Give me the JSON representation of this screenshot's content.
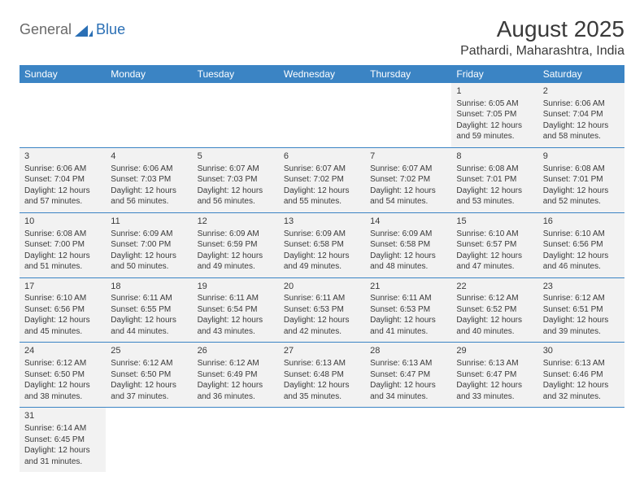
{
  "logo": {
    "part1": "General",
    "part2": "Blue"
  },
  "title": "August 2025",
  "location": "Pathardi, Maharashtra, India",
  "colors": {
    "header_bg": "#3b84c4",
    "header_text": "#ffffff",
    "cell_bg": "#f2f2f2",
    "border": "#3b84c4",
    "text": "#3a3a3a",
    "logo_gray": "#6a6a6a",
    "logo_blue": "#2a6fb5"
  },
  "weekdays": [
    "Sunday",
    "Monday",
    "Tuesday",
    "Wednesday",
    "Thursday",
    "Friday",
    "Saturday"
  ],
  "cells": [
    {
      "e": true
    },
    {
      "e": true
    },
    {
      "e": true
    },
    {
      "e": true
    },
    {
      "e": true
    },
    {
      "d": "1",
      "sr": "6:05 AM",
      "ss": "7:05 PM",
      "dl": "12 hours and 59 minutes."
    },
    {
      "d": "2",
      "sr": "6:06 AM",
      "ss": "7:04 PM",
      "dl": "12 hours and 58 minutes."
    },
    {
      "d": "3",
      "sr": "6:06 AM",
      "ss": "7:04 PM",
      "dl": "12 hours and 57 minutes."
    },
    {
      "d": "4",
      "sr": "6:06 AM",
      "ss": "7:03 PM",
      "dl": "12 hours and 56 minutes."
    },
    {
      "d": "5",
      "sr": "6:07 AM",
      "ss": "7:03 PM",
      "dl": "12 hours and 56 minutes."
    },
    {
      "d": "6",
      "sr": "6:07 AM",
      "ss": "7:02 PM",
      "dl": "12 hours and 55 minutes."
    },
    {
      "d": "7",
      "sr": "6:07 AM",
      "ss": "7:02 PM",
      "dl": "12 hours and 54 minutes."
    },
    {
      "d": "8",
      "sr": "6:08 AM",
      "ss": "7:01 PM",
      "dl": "12 hours and 53 minutes."
    },
    {
      "d": "9",
      "sr": "6:08 AM",
      "ss": "7:01 PM",
      "dl": "12 hours and 52 minutes."
    },
    {
      "d": "10",
      "sr": "6:08 AM",
      "ss": "7:00 PM",
      "dl": "12 hours and 51 minutes."
    },
    {
      "d": "11",
      "sr": "6:09 AM",
      "ss": "7:00 PM",
      "dl": "12 hours and 50 minutes."
    },
    {
      "d": "12",
      "sr": "6:09 AM",
      "ss": "6:59 PM",
      "dl": "12 hours and 49 minutes."
    },
    {
      "d": "13",
      "sr": "6:09 AM",
      "ss": "6:58 PM",
      "dl": "12 hours and 49 minutes."
    },
    {
      "d": "14",
      "sr": "6:09 AM",
      "ss": "6:58 PM",
      "dl": "12 hours and 48 minutes."
    },
    {
      "d": "15",
      "sr": "6:10 AM",
      "ss": "6:57 PM",
      "dl": "12 hours and 47 minutes."
    },
    {
      "d": "16",
      "sr": "6:10 AM",
      "ss": "6:56 PM",
      "dl": "12 hours and 46 minutes."
    },
    {
      "d": "17",
      "sr": "6:10 AM",
      "ss": "6:56 PM",
      "dl": "12 hours and 45 minutes."
    },
    {
      "d": "18",
      "sr": "6:11 AM",
      "ss": "6:55 PM",
      "dl": "12 hours and 44 minutes."
    },
    {
      "d": "19",
      "sr": "6:11 AM",
      "ss": "6:54 PM",
      "dl": "12 hours and 43 minutes."
    },
    {
      "d": "20",
      "sr": "6:11 AM",
      "ss": "6:53 PM",
      "dl": "12 hours and 42 minutes."
    },
    {
      "d": "21",
      "sr": "6:11 AM",
      "ss": "6:53 PM",
      "dl": "12 hours and 41 minutes."
    },
    {
      "d": "22",
      "sr": "6:12 AM",
      "ss": "6:52 PM",
      "dl": "12 hours and 40 minutes."
    },
    {
      "d": "23",
      "sr": "6:12 AM",
      "ss": "6:51 PM",
      "dl": "12 hours and 39 minutes."
    },
    {
      "d": "24",
      "sr": "6:12 AM",
      "ss": "6:50 PM",
      "dl": "12 hours and 38 minutes."
    },
    {
      "d": "25",
      "sr": "6:12 AM",
      "ss": "6:50 PM",
      "dl": "12 hours and 37 minutes."
    },
    {
      "d": "26",
      "sr": "6:12 AM",
      "ss": "6:49 PM",
      "dl": "12 hours and 36 minutes."
    },
    {
      "d": "27",
      "sr": "6:13 AM",
      "ss": "6:48 PM",
      "dl": "12 hours and 35 minutes."
    },
    {
      "d": "28",
      "sr": "6:13 AM",
      "ss": "6:47 PM",
      "dl": "12 hours and 34 minutes."
    },
    {
      "d": "29",
      "sr": "6:13 AM",
      "ss": "6:47 PM",
      "dl": "12 hours and 33 minutes."
    },
    {
      "d": "30",
      "sr": "6:13 AM",
      "ss": "6:46 PM",
      "dl": "12 hours and 32 minutes."
    },
    {
      "d": "31",
      "sr": "6:14 AM",
      "ss": "6:45 PM",
      "dl": "12 hours and 31 minutes."
    },
    {
      "e": true
    },
    {
      "e": true
    },
    {
      "e": true
    },
    {
      "e": true
    },
    {
      "e": true
    },
    {
      "e": true
    }
  ],
  "labels": {
    "sunrise": "Sunrise:",
    "sunset": "Sunset:",
    "daylight": "Daylight:"
  }
}
